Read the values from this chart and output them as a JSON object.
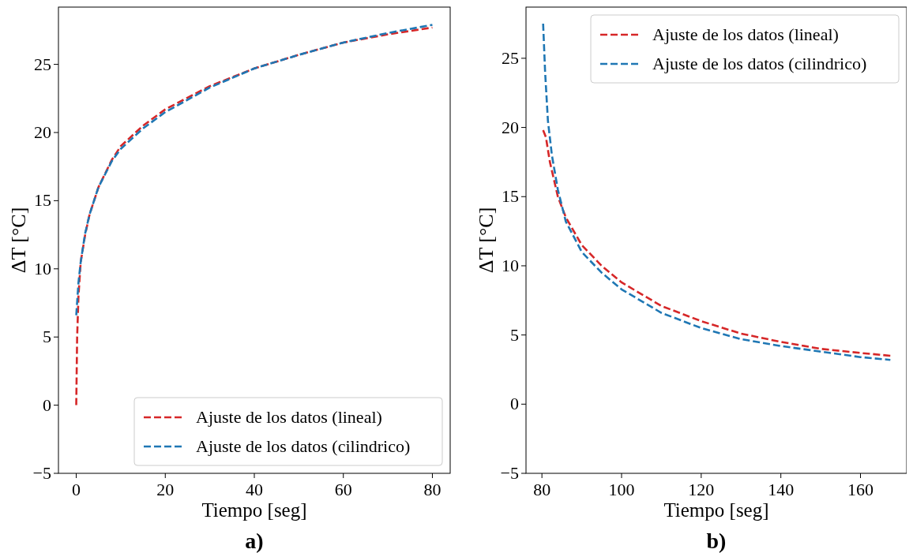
{
  "chart_data": [
    {
      "type": "line",
      "title": "a)",
      "xlabel": "Tiempo [seg]",
      "ylabel": "ΔT [°C]",
      "xlim": [
        -4,
        84
      ],
      "xticks": [
        0,
        20,
        40,
        60,
        80
      ],
      "ylim": [
        -5,
        29.2
      ],
      "yticks": [
        -5,
        0,
        5,
        10,
        15,
        20,
        25
      ],
      "legend": "bottom right",
      "line_style": "dashed",
      "grid": false,
      "series": [
        {
          "name": "Ajuste de los datos (lineal)",
          "color": "#d62728",
          "x": [
            0,
            0.2,
            0.5,
            1,
            2,
            3,
            5,
            8,
            10,
            15,
            20,
            30,
            40,
            50,
            60,
            70,
            80
          ],
          "values": [
            0,
            5,
            8,
            10.5,
            12.5,
            14,
            16,
            18,
            19,
            20.5,
            21.7,
            23.4,
            24.7,
            25.7,
            26.6,
            27.2,
            27.7
          ]
        },
        {
          "name": "Ajuste de los datos (cilindrico)",
          "color": "#1f77b4",
          "x": [
            0,
            0.5,
            1,
            2,
            3,
            5,
            8,
            10,
            15,
            20,
            30,
            40,
            50,
            60,
            70,
            80
          ],
          "values": [
            6.6,
            9,
            10.5,
            12.6,
            14,
            16,
            17.9,
            18.8,
            20.3,
            21.5,
            23.3,
            24.7,
            25.7,
            26.6,
            27.3,
            27.9
          ]
        }
      ]
    },
    {
      "type": "line",
      "title": "b)",
      "xlabel": "Tiempo [seg]",
      "ylabel": "ΔT [°C]",
      "xlim": [
        76,
        171.6
      ],
      "xticks": [
        80,
        100,
        120,
        140,
        160
      ],
      "ylim": [
        -5,
        28.7
      ],
      "yticks": [
        -5,
        0,
        5,
        10,
        15,
        20,
        25
      ],
      "legend": "top right",
      "line_style": "dashed",
      "grid": false,
      "series": [
        {
          "name": "Ajuste de los datos (lineal)",
          "color": "#d62728",
          "x": [
            80.3,
            81,
            82,
            84,
            86,
            90,
            95,
            100,
            110,
            120,
            130,
            140,
            150,
            160,
            167.5
          ],
          "values": [
            19.8,
            19.3,
            17.5,
            15,
            13.5,
            11.5,
            10,
            8.8,
            7.1,
            6,
            5.1,
            4.5,
            4,
            3.7,
            3.5
          ]
        },
        {
          "name": "Ajuste de los datos (cilindrico)",
          "color": "#1f77b4",
          "x": [
            80.3,
            80.8,
            81.5,
            82.5,
            84,
            86,
            90,
            95,
            100,
            110,
            120,
            130,
            140,
            150,
            160,
            167.5
          ],
          "values": [
            27.5,
            24,
            20.5,
            18,
            15.5,
            13.2,
            11,
            9.5,
            8.3,
            6.6,
            5.5,
            4.7,
            4.2,
            3.8,
            3.4,
            3.2
          ]
        }
      ]
    }
  ]
}
